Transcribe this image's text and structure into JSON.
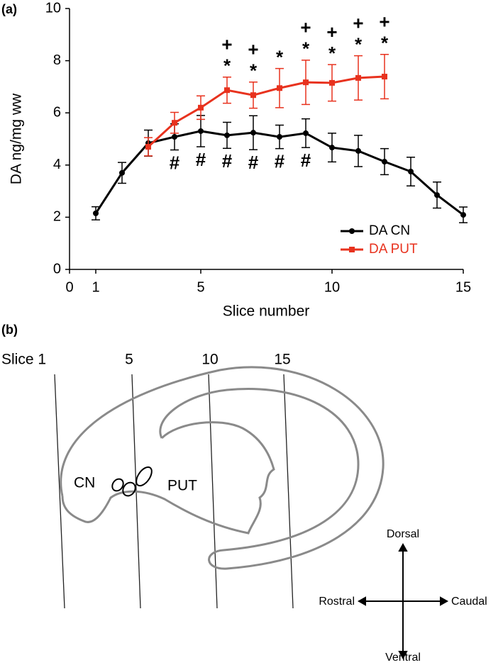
{
  "panel_labels": [
    "(a)",
    "(b)"
  ],
  "chart_data": {
    "type": "line",
    "x_label": "Slice number",
    "y_label": "DA ng/mg ww",
    "x": [
      1,
      2,
      3,
      4,
      5,
      6,
      7,
      8,
      9,
      10,
      11,
      12,
      13,
      14,
      15
    ],
    "series": [
      {
        "name": "DA CN",
        "color": "#000000",
        "marker": "circle",
        "values": [
          2.15,
          3.7,
          4.84,
          5.08,
          5.3,
          5.14,
          5.24,
          5.08,
          5.22,
          4.67,
          4.54,
          4.13,
          3.75,
          2.85,
          2.09
        ],
        "errors": [
          0.25,
          0.4,
          0.5,
          0.5,
          0.6,
          0.5,
          0.65,
          0.45,
          0.55,
          0.55,
          0.6,
          0.5,
          0.55,
          0.5,
          0.3
        ]
      },
      {
        "name": "DA PUT",
        "color": "#e8321e",
        "marker": "square",
        "values": [
          null,
          null,
          4.7,
          5.62,
          6.2,
          6.87,
          6.68,
          6.95,
          7.17,
          7.15,
          7.34,
          7.39,
          null,
          null,
          null
        ],
        "errors": [
          null,
          null,
          0.35,
          0.4,
          0.45,
          0.5,
          0.5,
          0.75,
          0.85,
          0.7,
          0.85,
          0.85,
          null,
          null,
          null
        ]
      }
    ],
    "annotations": [
      {
        "text": "#",
        "x": [
          4,
          5,
          6,
          7,
          8,
          9
        ]
      },
      {
        "text": "*",
        "x": [
          6,
          7,
          8,
          9,
          10,
          11,
          12
        ]
      },
      {
        "text": "+",
        "x": [
          6,
          7,
          9,
          10,
          11,
          12
        ]
      }
    ],
    "xlim": [
      0,
      15
    ],
    "xticks": [
      0,
      1,
      5,
      10,
      15
    ],
    "ylim": [
      0,
      10
    ],
    "yticks": [
      0,
      2,
      4,
      6,
      8,
      10
    ],
    "grid": false,
    "legend": "lower right"
  },
  "diagram": {
    "slice_labels": [
      "Slice 1",
      "5",
      "10",
      "15"
    ],
    "regions": [
      "CN",
      "PUT"
    ],
    "directions": {
      "up": "Dorsal",
      "left": "Rostral",
      "right": "Caudal",
      "down": "Ventral"
    }
  }
}
